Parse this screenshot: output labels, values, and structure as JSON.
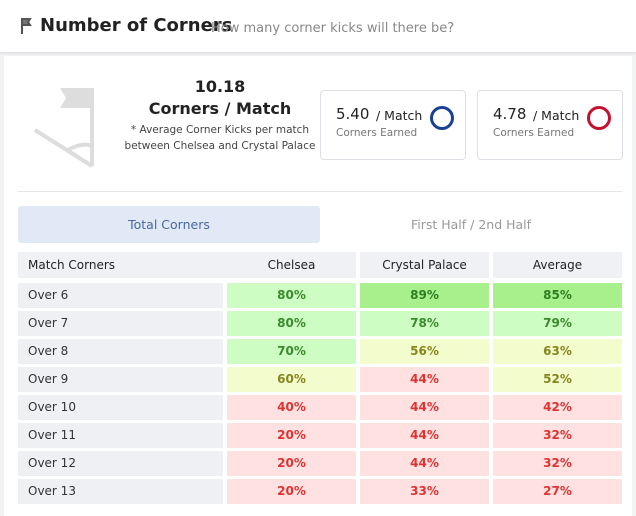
{
  "header": {
    "title": "Number of Corners",
    "subtitle": "How many corner kicks will there be?"
  },
  "summary": {
    "value": "10.18",
    "label": "Corners / Match",
    "note": "* Average Corner Kicks per match between Chelsea and Crystal Palace"
  },
  "cards": [
    {
      "value": "5.40",
      "unit": "/ Match",
      "label": "Corners Earned"
    },
    {
      "value": "4.78",
      "unit": "/ Match",
      "label": "Corners Earned"
    }
  ],
  "tabs": [
    "Total Corners",
    "First Half / 2nd Half"
  ],
  "table": {
    "columns": [
      "Match Corners",
      "Chelsea",
      "Crystal Palace",
      "Average"
    ],
    "rows": [
      [
        "Over 6",
        "80%",
        "89%",
        "85%"
      ],
      [
        "Over 7",
        "80%",
        "78%",
        "79%"
      ],
      [
        "Over 8",
        "70%",
        "56%",
        "63%"
      ],
      [
        "Over 9",
        "60%",
        "44%",
        "52%"
      ],
      [
        "Over 10",
        "40%",
        "44%",
        "42%"
      ],
      [
        "Over 11",
        "20%",
        "44%",
        "32%"
      ],
      [
        "Over 12",
        "20%",
        "44%",
        "32%"
      ],
      [
        "Over 13",
        "20%",
        "33%",
        "27%"
      ]
    ]
  }
}
